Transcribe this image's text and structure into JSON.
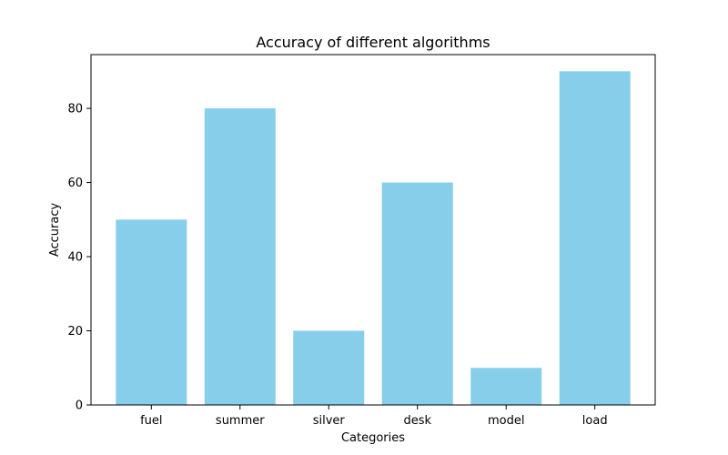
{
  "chart_data": {
    "type": "bar",
    "title": "Accuracy of different algorithms",
    "xlabel": "Categories",
    "ylabel": "Accuracy",
    "categories": [
      "fuel",
      "summer",
      "silver",
      "desk",
      "model",
      "load"
    ],
    "values": [
      50,
      80,
      20,
      60,
      10,
      90
    ],
    "ylim": [
      0,
      94.5
    ],
    "yticks": [
      0,
      20,
      40,
      60,
      80
    ],
    "grid": false,
    "legend": "none",
    "bar_color": "#87ceeb"
  }
}
